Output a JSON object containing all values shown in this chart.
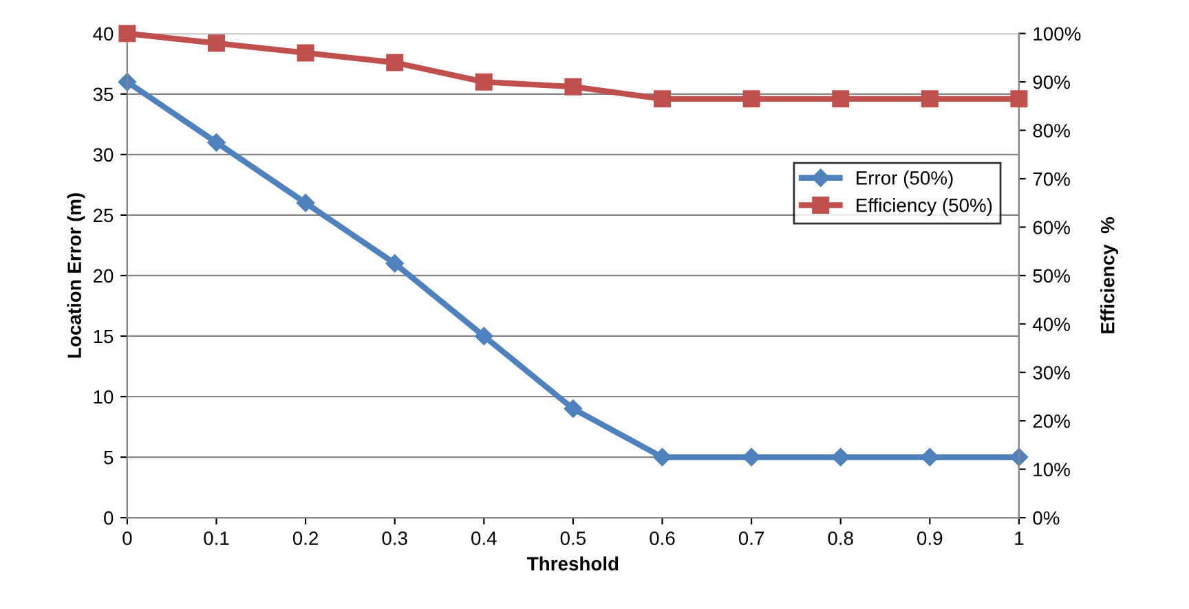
{
  "chart_data": {
    "type": "line",
    "xlabel": "Threshold",
    "ylabel": "Location Error (m)",
    "y2label": "Efficiency  %",
    "x": [
      0,
      0.1,
      0.2,
      0.3,
      0.4,
      0.5,
      0.6,
      0.7,
      0.8,
      0.9,
      1
    ],
    "series": [
      {
        "name": "Error (50%)",
        "color": "#4f81bd",
        "marker": "diamond",
        "values": [
          36,
          31,
          26,
          21,
          15,
          9,
          5,
          5,
          5,
          5,
          5
        ]
      },
      {
        "name": "Efficiency (50%)",
        "color": "#c0504d",
        "marker": "square",
        "axis": "y2",
        "values": [
          100,
          98,
          96,
          94,
          90,
          89,
          86.5,
          86.5,
          86.5,
          86.5,
          86.5
        ]
      }
    ],
    "xlim": [
      0,
      1
    ],
    "xticks": [
      0,
      0.1,
      0.2,
      0.3,
      0.4,
      0.5,
      0.6,
      0.7,
      0.8,
      0.9,
      1
    ],
    "ylim": [
      0,
      40
    ],
    "yticks": [
      0,
      5,
      10,
      15,
      20,
      25,
      30,
      35,
      40
    ],
    "y2lim": [
      0,
      100
    ],
    "y2ticks": [
      {
        "value": 0,
        "label": "0%"
      },
      {
        "value": 10,
        "label": "10%"
      },
      {
        "value": 20,
        "label": "20%"
      },
      {
        "value": 30,
        "label": "30%"
      },
      {
        "value": 40,
        "label": "40%"
      },
      {
        "value": 50,
        "label": "50%"
      },
      {
        "value": 60,
        "label": "60%"
      },
      {
        "value": 70,
        "label": "70%"
      },
      {
        "value": 80,
        "label": "80%"
      },
      {
        "value": 90,
        "label": "90%"
      },
      {
        "value": 100,
        "label": "100%"
      }
    ],
    "grid": "y",
    "legend": "right"
  }
}
